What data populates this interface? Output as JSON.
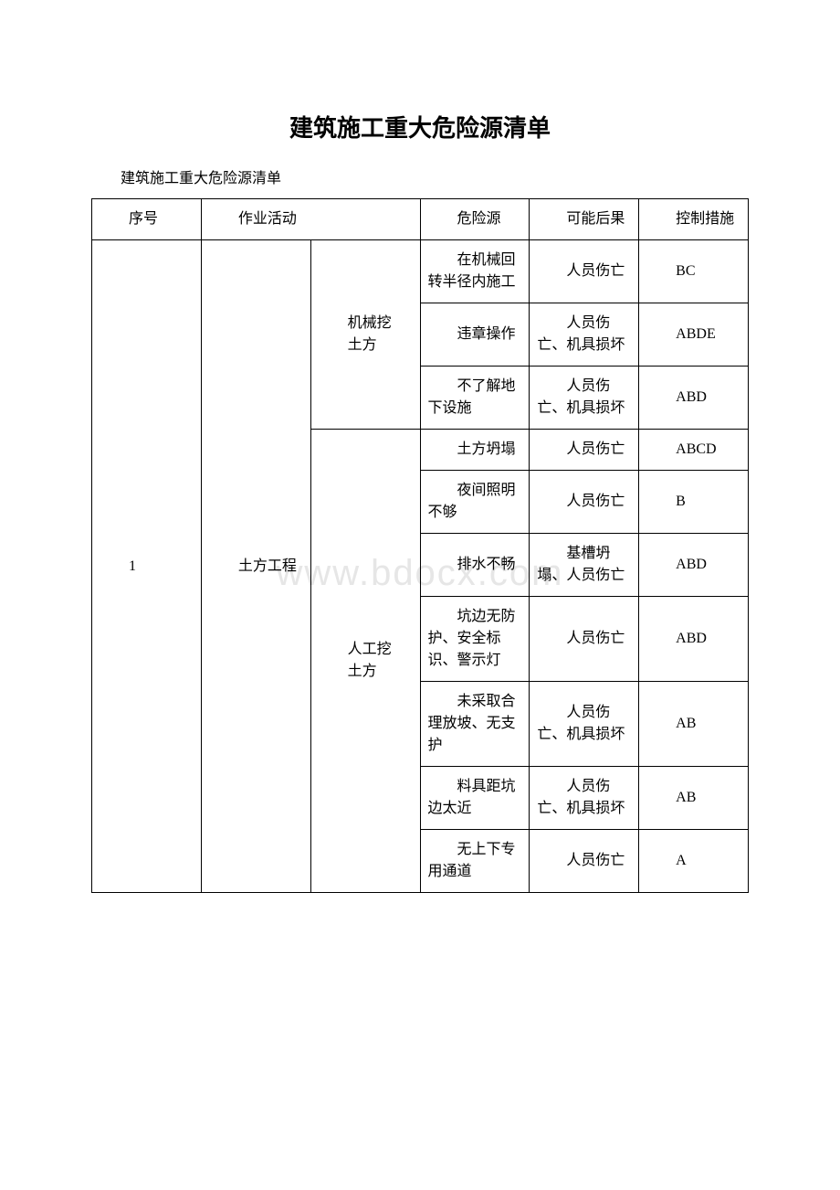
{
  "title": "建筑施工重大危险源清单",
  "subtitle": "建筑施工重大危险源清单",
  "watermark": "www.bdocx.com",
  "headers": {
    "seq": "序号",
    "activity": "作业活动",
    "source": "危险源",
    "result": "可能后果",
    "control": "控制措施"
  },
  "group_seq": "1",
  "group_activity": "土方工程",
  "sub1_label": "机械挖",
  "sub1_label2": "土方",
  "sub2_label": "人工挖",
  "sub2_label2": "土方",
  "rows": [
    {
      "src": "在机械回转半径内施工",
      "res": "人员伤亡",
      "ctl": "BC"
    },
    {
      "src": "违章操作",
      "res": "人员伤亡、机具损坏",
      "ctl": "ABDE"
    },
    {
      "src": "不了解地下设施",
      "res": "人员伤亡、机具损坏",
      "ctl": "ABD"
    },
    {
      "src": "土方坍塌",
      "res": "人员伤亡",
      "ctl": "ABCD"
    },
    {
      "src": "夜间照明不够",
      "res": "人员伤亡",
      "ctl": "B"
    },
    {
      "src": "排水不畅",
      "res": "基槽坍塌、人员伤亡",
      "ctl": "ABD"
    },
    {
      "src": "坑边无防护、安全标识、警示灯",
      "res": "人员伤亡",
      "ctl": "ABD"
    },
    {
      "src": "未采取合理放坡、无支护",
      "res": "人员伤亡、机具损坏",
      "ctl": "AB"
    },
    {
      "src": "料具距坑边太近",
      "res": "人员伤亡、机具损坏",
      "ctl": "AB"
    },
    {
      "src": "无上下专用通道",
      "res": "人员伤亡",
      "ctl": "A"
    }
  ]
}
